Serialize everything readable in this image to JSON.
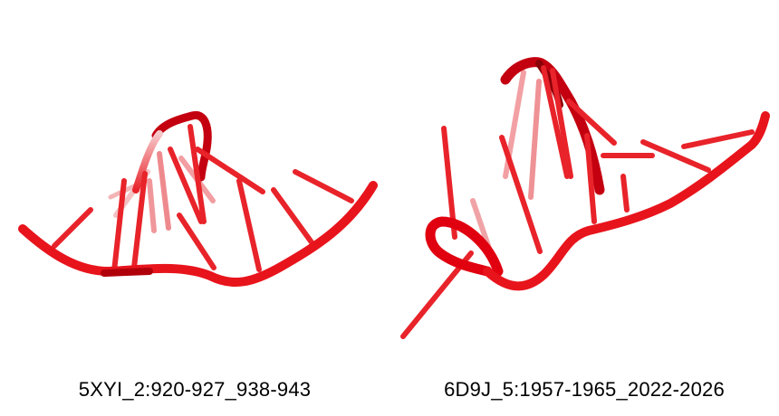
{
  "figures": [
    {
      "caption": "5XYI_2:920-927_938-943"
    },
    {
      "caption": "6D9J_5:1957-1965_2022-2026"
    }
  ],
  "colors": {
    "backbone": "#e8141c",
    "backbone_dark": "#b0000a",
    "base": "#e8232a",
    "base_faded": "#f2a5a8",
    "background": "#ffffff"
  }
}
